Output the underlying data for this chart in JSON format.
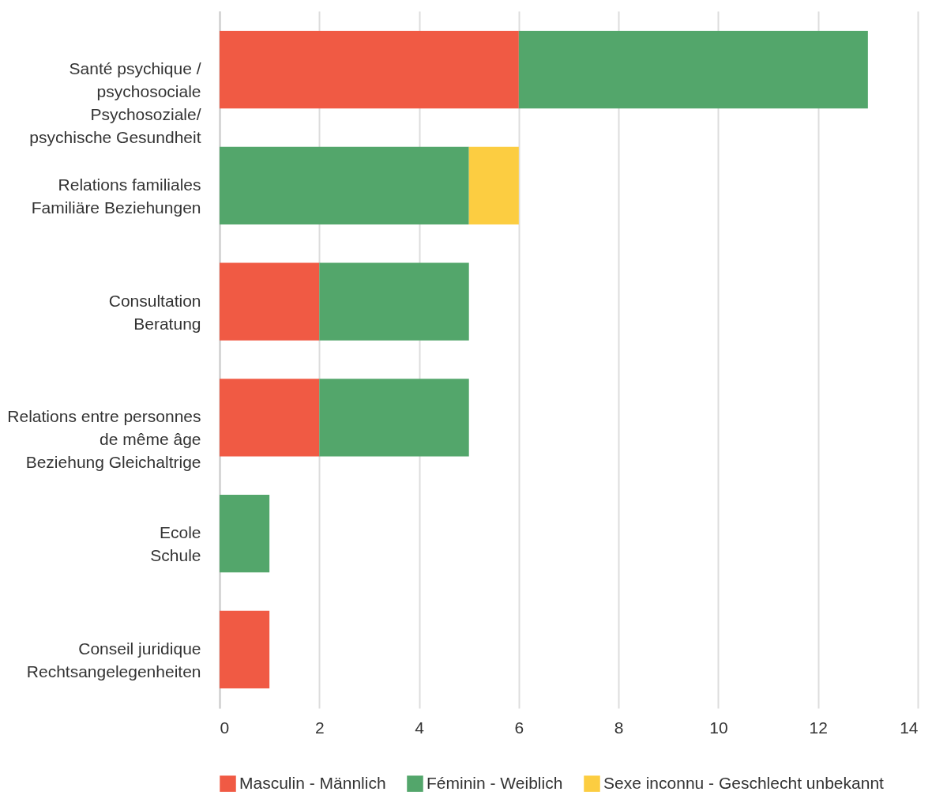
{
  "chart_data": {
    "type": "bar",
    "orientation": "horizontal",
    "stacked": true,
    "categories": [
      "Santé psychique /\npsychosociale\nPsychosoziale/\npsychische Gesundheit",
      "Relations familiales\nFamiliäre Beziehungen",
      "Consultation\nBeratung",
      "Relations entre personnes\nde même âge\nBeziehung Gleichaltrige",
      "Ecole\nSchule",
      "Conseil juridique\nRechtsangelegenheiten"
    ],
    "series": [
      {
        "name": "Masculin - Männlich",
        "color": "#f05a44",
        "values": [
          6,
          null,
          2,
          2,
          null,
          1
        ]
      },
      {
        "name": "Féminin - Weiblich",
        "color": "#53a66b",
        "values": [
          7,
          5,
          3,
          3,
          1,
          null
        ]
      },
      {
        "name": "Sexe inconnu - Geschlecht unbekannt",
        "color": "#fccd41",
        "values": [
          null,
          1,
          null,
          null,
          null,
          null
        ]
      }
    ],
    "xlim": [
      0,
      14
    ],
    "xticks": [
      0,
      2,
      4,
      6,
      8,
      10,
      12,
      14
    ],
    "grid": "x",
    "legend": "bottom"
  }
}
